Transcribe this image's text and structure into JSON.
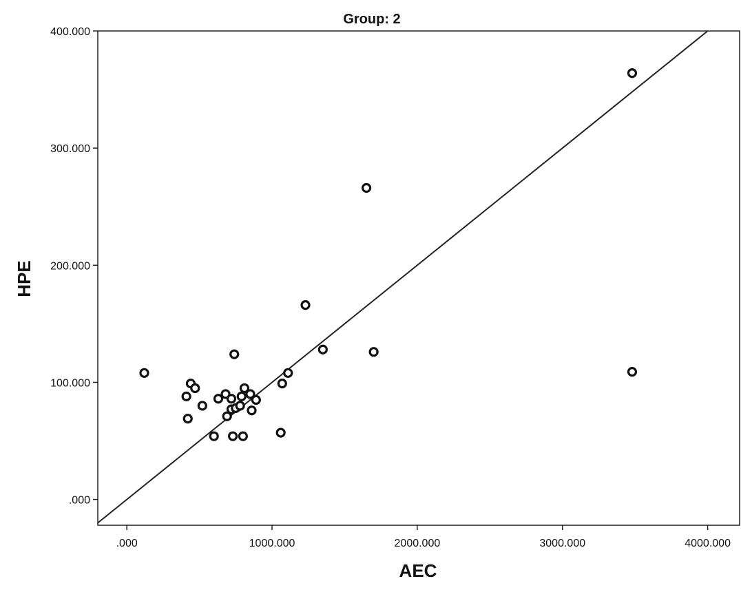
{
  "chart_data": {
    "type": "scatter",
    "title": "Group: 2",
    "xlabel": "AEC",
    "ylabel": "HPE",
    "xlim": [
      -200,
      4220
    ],
    "ylim": [
      -22,
      400.0
    ],
    "x_ticks": [
      0,
      1000,
      2000,
      3000,
      4000
    ],
    "x_tick_labels": [
      ".000",
      "1000.000",
      "2000.000",
      "3000.000",
      "4000.000"
    ],
    "y_ticks": [
      0,
      100,
      200,
      300,
      400
    ],
    "y_tick_labels": [
      ".000",
      "100.000",
      "200.000",
      "300.000",
      "400.000"
    ],
    "grid": false,
    "reference_line": "y = x/10",
    "points": [
      {
        "x": 120,
        "y": 108
      },
      {
        "x": 410,
        "y": 88
      },
      {
        "x": 420,
        "y": 69
      },
      {
        "x": 440,
        "y": 99
      },
      {
        "x": 470,
        "y": 95
      },
      {
        "x": 520,
        "y": 80
      },
      {
        "x": 600,
        "y": 54
      },
      {
        "x": 630,
        "y": 86
      },
      {
        "x": 680,
        "y": 90
      },
      {
        "x": 690,
        "y": 71
      },
      {
        "x": 720,
        "y": 86
      },
      {
        "x": 720,
        "y": 77
      },
      {
        "x": 730,
        "y": 54
      },
      {
        "x": 740,
        "y": 124
      },
      {
        "x": 750,
        "y": 78
      },
      {
        "x": 780,
        "y": 80
      },
      {
        "x": 790,
        "y": 88
      },
      {
        "x": 800,
        "y": 54
      },
      {
        "x": 810,
        "y": 95
      },
      {
        "x": 850,
        "y": 90
      },
      {
        "x": 860,
        "y": 76
      },
      {
        "x": 890,
        "y": 85
      },
      {
        "x": 1060,
        "y": 57
      },
      {
        "x": 1070,
        "y": 99
      },
      {
        "x": 1110,
        "y": 108
      },
      {
        "x": 1230,
        "y": 166
      },
      {
        "x": 1350,
        "y": 128
      },
      {
        "x": 1650,
        "y": 266
      },
      {
        "x": 1700,
        "y": 126
      },
      {
        "x": 3480,
        "y": 109
      },
      {
        "x": 3480,
        "y": 364
      }
    ]
  }
}
